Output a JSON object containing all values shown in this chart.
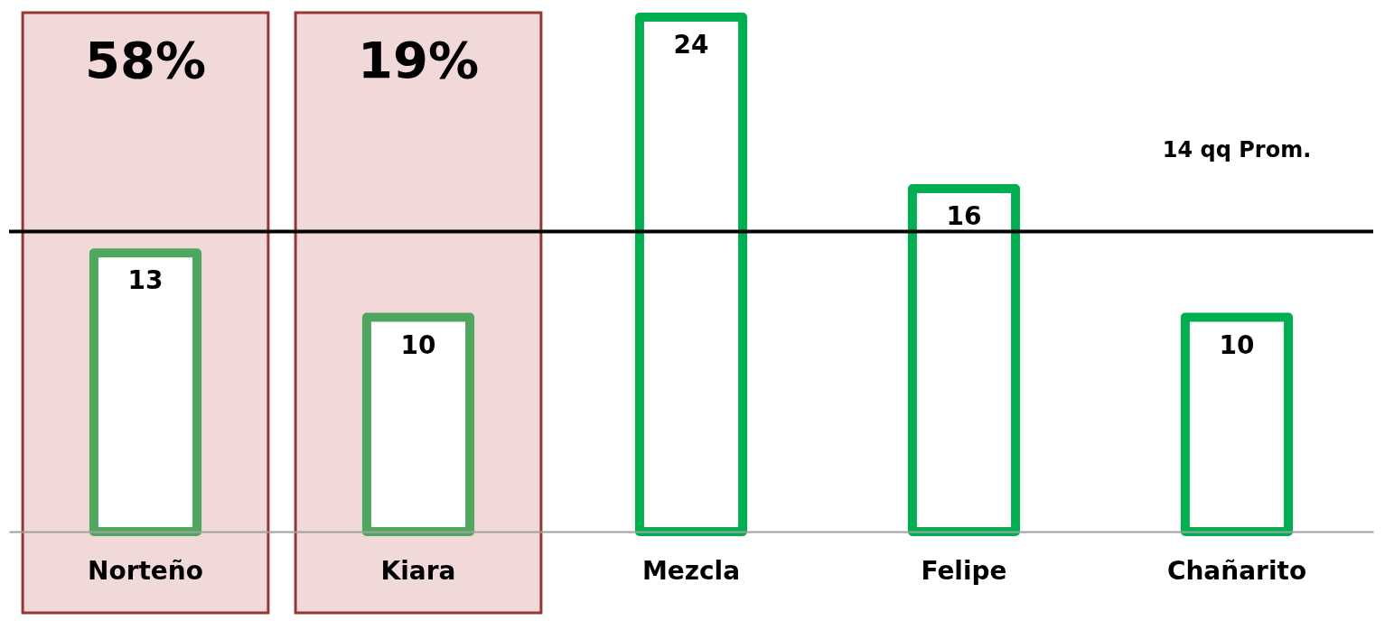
{
  "chart_data": {
    "type": "bar",
    "categories": [
      "Norteño",
      "Kiara",
      "Mezcla",
      "Felipe",
      "Chañarito"
    ],
    "values": [
      13,
      10,
      24,
      16,
      10
    ],
    "colors": [
      "#4ea65f",
      "#4ea65f",
      "#00b050",
      "#00b050",
      "#00b050"
    ],
    "data_labels": true,
    "ref_lines": [
      {
        "axis": "y",
        "value": 14,
        "label": "14 qq Prom.",
        "color": "#000000"
      }
    ],
    "bands": [
      {
        "axis": "x",
        "from": "Norteño",
        "to": "Norteño",
        "label": "58%",
        "color": "#f2d9d9"
      },
      {
        "axis": "x",
        "from": "Kiara",
        "to": "Kiara",
        "label": "19%",
        "color": "#f2d9d9"
      }
    ],
    "grid": false
  }
}
